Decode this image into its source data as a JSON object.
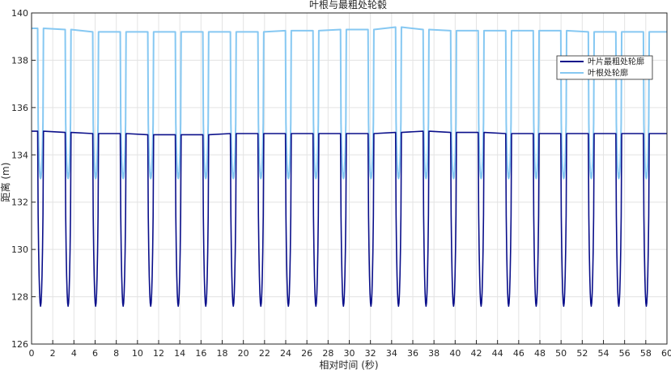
{
  "colors": {
    "series_tip": "#0a0f8a",
    "series_root": "#86c8f2",
    "grid": "#e3e3e3",
    "axis": "#262626"
  },
  "chart_data": {
    "type": "line",
    "title": "叶根与最粗处轮毂",
    "xlabel": "相对时间 (秒)",
    "ylabel": "距离 (m)",
    "xlim": [
      0,
      60
    ],
    "ylim": [
      126,
      140
    ],
    "xticks": [
      0,
      2,
      4,
      6,
      8,
      10,
      12,
      14,
      16,
      18,
      20,
      22,
      24,
      26,
      28,
      30,
      32,
      34,
      36,
      38,
      40,
      42,
      44,
      46,
      48,
      50,
      52,
      54,
      56,
      58,
      60
    ],
    "yticks": [
      126,
      128,
      130,
      132,
      134,
      136,
      138,
      140
    ],
    "grid": true,
    "legend_position": "top-right",
    "pulse_period_s": 2.6,
    "pulse_first_s": 0.85,
    "pulse_width_s": 0.55,
    "series": [
      {
        "name": "叶片最粗处轮廓",
        "color": "#0a0f8a",
        "baseline": 134.9,
        "minimum": 127.6,
        "baseline_values": [
          135.0,
          134.95,
          134.9,
          134.9,
          134.85,
          134.85,
          134.85,
          134.9,
          134.9,
          134.9,
          134.9,
          134.9,
          134.9,
          134.95,
          135.0,
          134.95,
          134.95,
          134.9,
          134.9,
          134.9,
          134.9,
          134.9,
          134.9
        ]
      },
      {
        "name": "叶根处轮廓",
        "color": "#86c8f2",
        "baseline": 139.25,
        "minimum": 133.0,
        "baseline_values": [
          139.35,
          139.3,
          139.2,
          139.2,
          139.2,
          139.2,
          139.2,
          139.2,
          139.2,
          139.25,
          139.25,
          139.3,
          139.3,
          139.4,
          139.3,
          139.25,
          139.25,
          139.25,
          139.25,
          139.25,
          139.2,
          139.2,
          139.2
        ]
      }
    ]
  }
}
